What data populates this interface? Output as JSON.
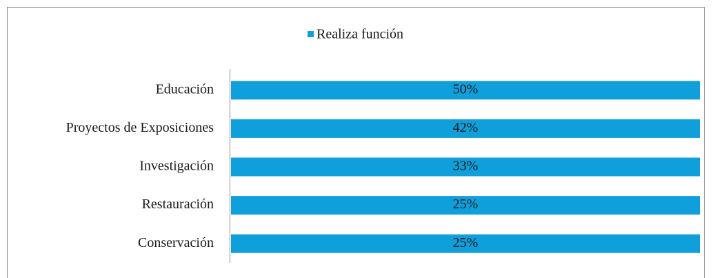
{
  "chart_data": {
    "type": "bar",
    "orientation": "horizontal",
    "stacking": "percent",
    "categories": [
      "Educación",
      "Proyectos de Exposiciones",
      "Investigación",
      "Restauración",
      "Conservación"
    ],
    "series": [
      {
        "name": "Realiza función",
        "color": "#0f9fdb",
        "values": [
          50,
          42,
          33,
          25,
          25
        ],
        "value_labels": [
          "50%",
          "42%",
          "33%",
          "25%",
          "25%"
        ]
      }
    ],
    "legend": "top"
  }
}
